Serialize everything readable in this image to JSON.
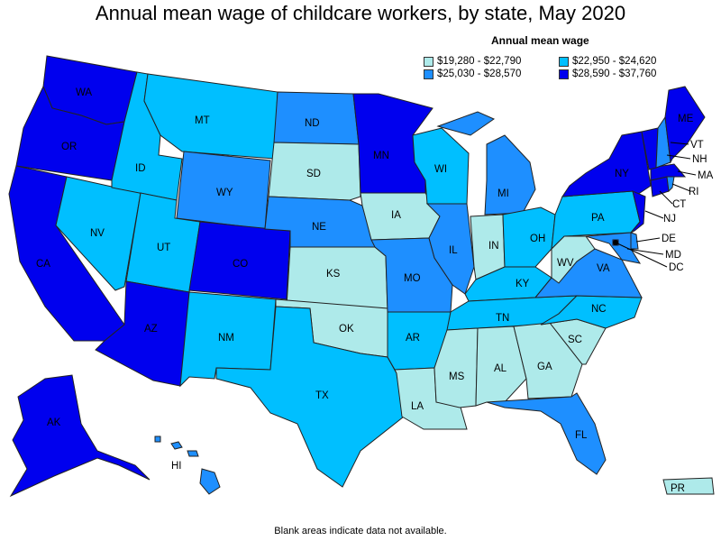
{
  "title": "Annual mean wage of childcare workers, by state, May 2020",
  "legend": {
    "title": "Annual mean wage",
    "items": [
      {
        "label": "$19,280 - $22,790",
        "color": "#aeeaea"
      },
      {
        "label": "$22,950 - $24,620",
        "color": "#00bfff"
      },
      {
        "label": "$25,030 - $28,570",
        "color": "#1e8fff"
      },
      {
        "label": "$28,590 - $37,760",
        "color": "#0000ee"
      }
    ]
  },
  "footnote": "Blank areas indicate data not available.",
  "states": {
    "WA": 3,
    "OR": 3,
    "CA": 3,
    "NV": 1,
    "ID": 1,
    "MT": 1,
    "WY": 2,
    "UT": 1,
    "AZ": 3,
    "CO": 3,
    "NM": 1,
    "ND": 2,
    "SD": 0,
    "NE": 2,
    "KS": 0,
    "OK": 0,
    "TX": 1,
    "MN": 3,
    "IA": 0,
    "MO": 2,
    "AR": 1,
    "LA": 0,
    "WI": 1,
    "IL": 2,
    "MI": 2,
    "IN": 0,
    "OH": 1,
    "KY": 1,
    "TN": 1,
    "MS": 0,
    "AL": 0,
    "GA": 0,
    "FL": 2,
    "SC": 0,
    "NC": 1,
    "VA": 2,
    "WV": 0,
    "PA": 1,
    "NY": 3,
    "ME": 3,
    "VT": 3,
    "NH": 2,
    "MA": 3,
    "RI": 2,
    "CT": 3,
    "NJ": 3,
    "DE": 2,
    "MD": 2,
    "DC": 3,
    "AK": 3,
    "HI": 2,
    "PR": 0
  },
  "state_labels": [
    "WA",
    "OR",
    "CA",
    "NV",
    "ID",
    "MT",
    "WY",
    "UT",
    "AZ",
    "CO",
    "NM",
    "ND",
    "SD",
    "NE",
    "KS",
    "OK",
    "TX",
    "MN",
    "IA",
    "MO",
    "AR",
    "LA",
    "WI",
    "IL",
    "MI",
    "IN",
    "OH",
    "KY",
    "TN",
    "MS",
    "AL",
    "GA",
    "FL",
    "SC",
    "NC",
    "VA",
    "WV",
    "PA",
    "NY",
    "ME",
    "AK",
    "HI",
    "PR"
  ],
  "external_labels": [
    "VT",
    "NH",
    "MA",
    "RI",
    "CT",
    "NJ",
    "DE",
    "MD",
    "DC"
  ]
}
